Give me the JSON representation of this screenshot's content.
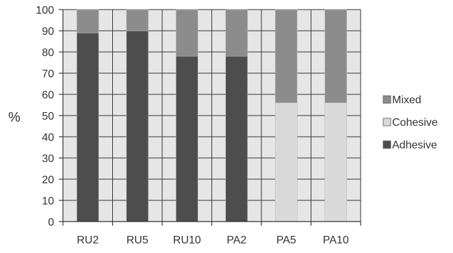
{
  "chart_data": {
    "type": "bar",
    "stacked": true,
    "title": "",
    "xlabel": "",
    "ylabel": "%",
    "ylim": [
      0,
      100
    ],
    "yticks": [
      0,
      10,
      20,
      30,
      40,
      50,
      60,
      70,
      80,
      90,
      100
    ],
    "grid": true,
    "legend_position": "right",
    "categories": [
      "RU2",
      "RU5",
      "RU10",
      "PA2",
      "PA5",
      "PA10"
    ],
    "series": [
      {
        "name": "Adhesive",
        "color": "#4d4d4d",
        "values": [
          89,
          90,
          78,
          78,
          0,
          0
        ]
      },
      {
        "name": "Cohesive",
        "color": "#d9d9d9",
        "values": [
          0,
          0,
          0,
          0,
          56,
          56
        ]
      },
      {
        "name": "Mixed",
        "color": "#8c8c8c",
        "values": [
          11,
          10,
          22,
          22,
          44,
          44
        ]
      }
    ],
    "legend_order": [
      "Mixed",
      "Cohesive",
      "Adhesive"
    ],
    "colors": {
      "plot_background": "#e6e6e6",
      "grid": "#333333",
      "axis": "#333333"
    }
  }
}
